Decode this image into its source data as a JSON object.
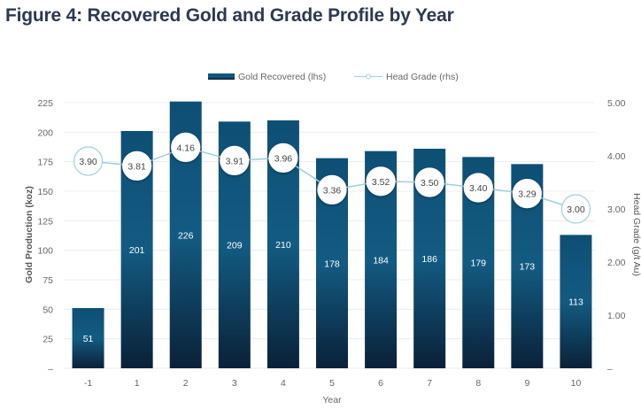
{
  "chart_data": {
    "type": "bar",
    "title": "Figure 4: Recovered Gold and Grade Profile by Year",
    "xlabel": "Year",
    "ylabel": "Gold Production (koz)",
    "y2label": "Head Grade (g/t Au)",
    "categories": [
      "-1",
      "1",
      "2",
      "3",
      "4",
      "5",
      "6",
      "7",
      "8",
      "9",
      "10"
    ],
    "ylim": [
      0,
      225
    ],
    "yticks": [
      0,
      25,
      50,
      75,
      100,
      125,
      150,
      175,
      200,
      225
    ],
    "ytick_labels": [
      "–",
      "25",
      "50",
      "75",
      "100",
      "125",
      "150",
      "175",
      "200",
      "225"
    ],
    "y2lim": [
      0,
      5
    ],
    "y2ticks": [
      0,
      1,
      2,
      3,
      4,
      5
    ],
    "y2tick_labels": [
      "–",
      "1.00",
      "2.00",
      "3.00",
      "4.00",
      "5.00"
    ],
    "grid": true,
    "legend_position": "top-center",
    "series": [
      {
        "name": "Gold Recovered (lhs)",
        "type": "bar",
        "axis": "left",
        "color": "#0f4a6e",
        "values": [
          51,
          201,
          226,
          209,
          210,
          178,
          184,
          186,
          179,
          173,
          113
        ],
        "labels": [
          "51",
          "201",
          "226",
          "209",
          "210",
          "178",
          "184",
          "186",
          "179",
          "173",
          "113"
        ]
      },
      {
        "name": "Head Grade (rhs)",
        "type": "line",
        "axis": "right",
        "color": "#9fcfdc",
        "values": [
          3.9,
          3.81,
          4.16,
          3.91,
          3.96,
          3.36,
          3.52,
          3.5,
          3.4,
          3.29,
          3.0
        ],
        "labels": [
          "3.90",
          "3.81",
          "4.16",
          "3.91",
          "3.96",
          "3.36",
          "3.52",
          "3.50",
          "3.40",
          "3.29",
          "3.00"
        ]
      }
    ]
  }
}
